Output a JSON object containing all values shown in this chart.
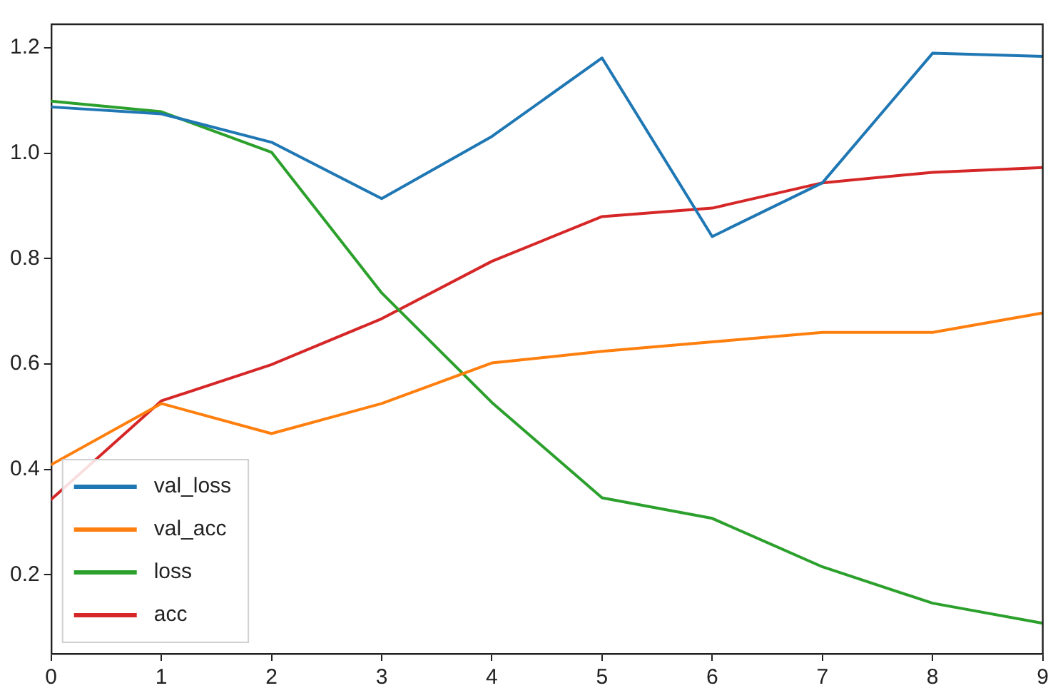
{
  "chart_data": {
    "type": "line",
    "x": [
      0,
      1,
      2,
      3,
      4,
      5,
      6,
      7,
      8,
      9
    ],
    "series": [
      {
        "name": "val_loss",
        "color": "#1f77b4",
        "values": [
          1.088,
          1.075,
          1.021,
          0.914,
          1.032,
          1.181,
          0.842,
          0.944,
          1.19,
          1.184
        ]
      },
      {
        "name": "val_acc",
        "color": "#ff7f0e",
        "values": [
          0.409,
          0.525,
          0.468,
          0.525,
          0.602,
          0.624,
          0.642,
          0.66,
          0.66,
          0.697
        ]
      },
      {
        "name": "loss",
        "color": "#2ca02c",
        "values": [
          1.099,
          1.079,
          1.002,
          0.735,
          0.527,
          0.346,
          0.307,
          0.215,
          0.146,
          0.108
        ]
      },
      {
        "name": "acc",
        "color": "#d62728",
        "values": [
          0.343,
          0.53,
          0.599,
          0.686,
          0.795,
          0.88,
          0.896,
          0.944,
          0.964,
          0.973
        ]
      }
    ],
    "xlim": [
      0,
      9
    ],
    "xticks": [
      0,
      1,
      2,
      3,
      4,
      5,
      6,
      7,
      8,
      9
    ],
    "ylim": [
      0.05,
      1.245
    ],
    "yticks": [
      0.2,
      0.4,
      0.6,
      0.8,
      {
        "value": 1,
        "label": "1.0"
      },
      1.2
    ],
    "grid": false,
    "legend": "bottom left",
    "marker": "none",
    "line_style": "solid"
  }
}
